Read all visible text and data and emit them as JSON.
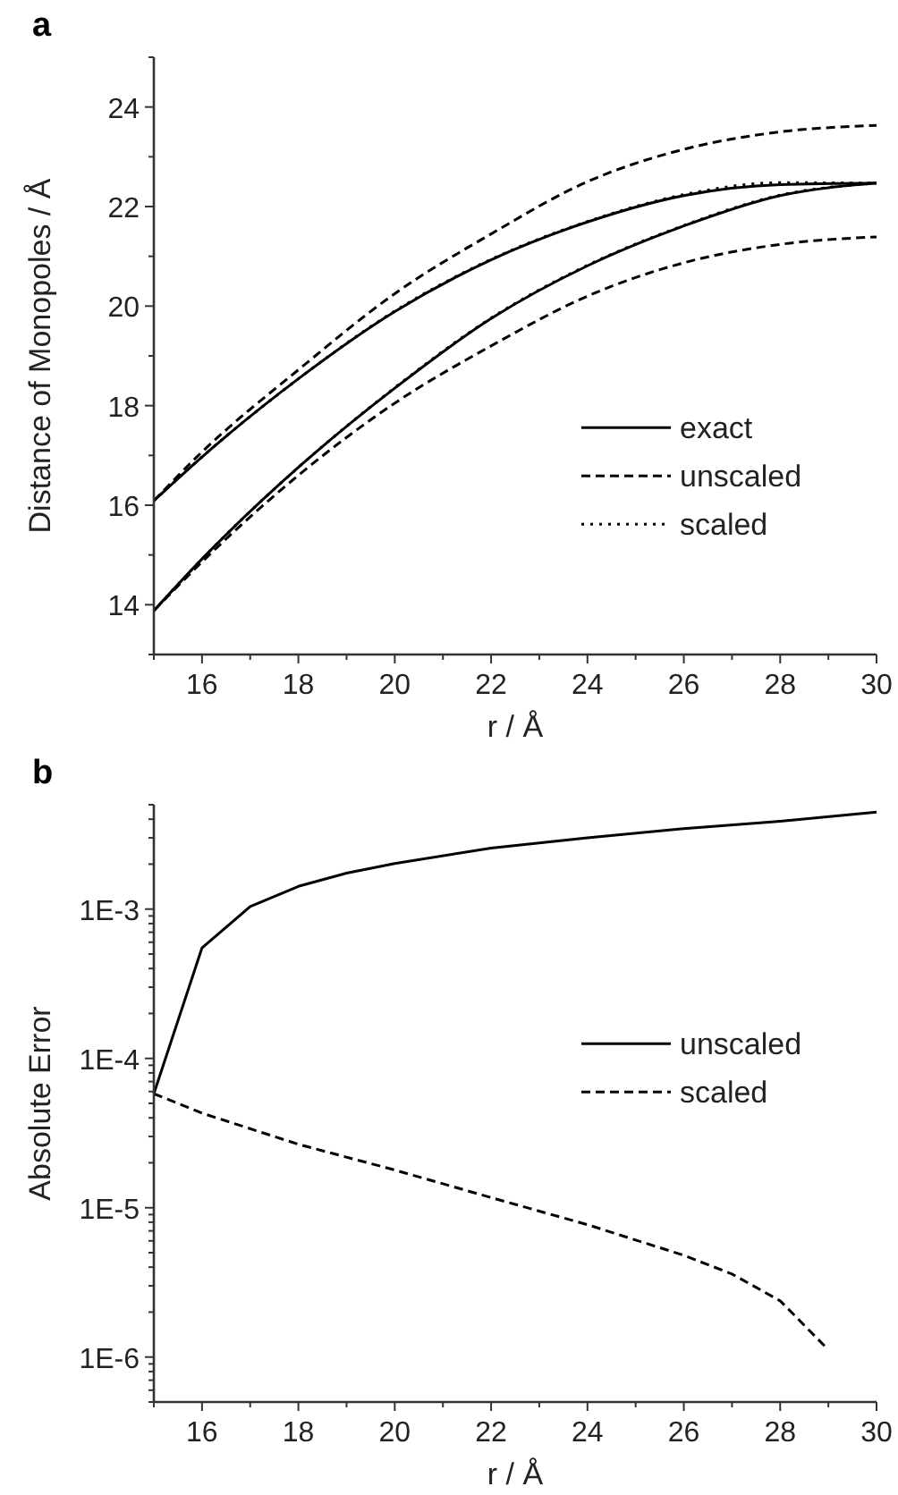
{
  "chart_data": [
    {
      "type": "line",
      "title": "a",
      "xlabel": "r / Å",
      "ylabel": "Distance of Monopoles /  Å",
      "x": [
        15,
        16,
        18,
        20,
        22,
        24,
        26,
        28,
        30
      ],
      "xlim": [
        15,
        30
      ],
      "xticks": [
        {
          "value": 15,
          "label": null
        },
        16,
        {
          "value": 17,
          "label": null
        },
        18,
        {
          "value": 19,
          "label": null
        },
        20,
        {
          "value": 21,
          "label": null
        },
        22,
        {
          "value": 23,
          "label": null
        },
        24,
        {
          "value": 25,
          "label": null
        },
        26,
        {
          "value": 27,
          "label": null
        },
        28,
        {
          "value": 29,
          "label": null
        },
        30
      ],
      "ylim": [
        13,
        25
      ],
      "yticks": [
        {
          "value": 13,
          "label": null
        },
        14,
        {
          "value": 15,
          "label": null
        },
        16,
        {
          "value": 17,
          "label": null
        },
        18,
        {
          "value": 19,
          "label": null
        },
        20,
        {
          "value": 21,
          "label": null
        },
        22,
        {
          "value": 23,
          "label": null
        },
        24,
        {
          "value": 25,
          "label": null
        }
      ],
      "grid": false,
      "legend": "right",
      "marker": "none",
      "series": [
        {
          "name": "exact",
          "color": "#000000",
          "line_style": "solid",
          "values": [
            16.09,
            16.97,
            18.54,
            19.89,
            20.93,
            21.69,
            22.22,
            22.44,
            22.47
          ]
        },
        {
          "color": "#000000",
          "line_style": "solid",
          "values": [
            13.88,
            14.92,
            16.76,
            18.35,
            19.75,
            20.81,
            21.61,
            22.22,
            22.47
          ]
        },
        {
          "name": "unscaled",
          "color": "#000000",
          "line_style": "dashed",
          "values": [
            16.09,
            17.07,
            18.72,
            20.25,
            21.45,
            22.5,
            23.15,
            23.5,
            23.63
          ]
        },
        {
          "color": "#000000",
          "line_style": "dashed",
          "values": [
            13.88,
            14.86,
            16.6,
            18.05,
            19.2,
            20.2,
            20.87,
            21.24,
            21.39
          ]
        },
        {
          "name": "scaled",
          "color": "#000000",
          "line_style": "dotted",
          "values": [
            16.09,
            16.97,
            18.54,
            19.9,
            20.94,
            21.7,
            22.24,
            22.48,
            22.47
          ]
        },
        {
          "color": "#000000",
          "line_style": "dotted",
          "values": [
            13.88,
            14.92,
            16.76,
            18.36,
            19.76,
            20.82,
            21.62,
            22.23,
            22.47
          ]
        }
      ]
    },
    {
      "type": "line",
      "title": "b",
      "xlabel": "r / Å",
      "ylabel": "Absolute Error",
      "log": "y",
      "xlim": [
        15,
        30
      ],
      "xticks": [
        {
          "value": 15,
          "label": null
        },
        16,
        {
          "value": 17,
          "label": null
        },
        18,
        {
          "value": 19,
          "label": null
        },
        20,
        {
          "value": 21,
          "label": null
        },
        22,
        {
          "value": 23,
          "label": null
        },
        24,
        {
          "value": 25,
          "label": null
        },
        26,
        {
          "value": 27,
          "label": null
        },
        28,
        {
          "value": 29,
          "label": null
        },
        30
      ],
      "ylim": [
        5e-07,
        0.005
      ],
      "yticks": [
        {
          "value": 5e-07,
          "label": null
        },
        {
          "value": 6e-07,
          "label": null
        },
        {
          "value": 7e-07,
          "label": null
        },
        {
          "value": 8e-07,
          "label": null
        },
        {
          "value": 9e-07,
          "label": null
        },
        {
          "value": 1e-06,
          "label": "1E-6"
        },
        {
          "value": 2e-06,
          "label": null
        },
        {
          "value": 3e-06,
          "label": null
        },
        {
          "value": 4e-06,
          "label": null
        },
        {
          "value": 5e-06,
          "label": null
        },
        {
          "value": 6e-06,
          "label": null
        },
        {
          "value": 7e-06,
          "label": null
        },
        {
          "value": 8e-06,
          "label": null
        },
        {
          "value": 9e-06,
          "label": null
        },
        {
          "value": 1e-05,
          "label": "1E-5"
        },
        {
          "value": 2e-05,
          "label": null
        },
        {
          "value": 3e-05,
          "label": null
        },
        {
          "value": 4e-05,
          "label": null
        },
        {
          "value": 5e-05,
          "label": null
        },
        {
          "value": 6e-05,
          "label": null
        },
        {
          "value": 7e-05,
          "label": null
        },
        {
          "value": 8e-05,
          "label": null
        },
        {
          "value": 9e-05,
          "label": null
        },
        {
          "value": 0.0001,
          "label": "1E-4"
        },
        {
          "value": 0.0002,
          "label": null
        },
        {
          "value": 0.0003,
          "label": null
        },
        {
          "value": 0.0004,
          "label": null
        },
        {
          "value": 0.0005,
          "label": null
        },
        {
          "value": 0.0006,
          "label": null
        },
        {
          "value": 0.0007,
          "label": null
        },
        {
          "value": 0.0008,
          "label": null
        },
        {
          "value": 0.0009,
          "label": null
        },
        {
          "value": 0.001,
          "label": "1E-3"
        },
        {
          "value": 0.002,
          "label": null
        },
        {
          "value": 0.003,
          "label": null
        },
        {
          "value": 0.004,
          "label": null
        },
        {
          "value": 0.005,
          "label": null
        }
      ],
      "grid": false,
      "legend": "center right",
      "marker": "none",
      "series": [
        {
          "name": "unscaled",
          "color": "#000000",
          "line_style": "solid",
          "x": [
            15,
            16,
            17,
            18,
            19,
            20,
            22,
            24,
            26,
            28,
            30
          ],
          "values": [
            5.8e-05,
            0.00055,
            0.00104,
            0.00142,
            0.00174,
            0.00202,
            0.00256,
            0.003,
            0.00346,
            0.00387,
            0.00446
          ]
        },
        {
          "name": "scaled",
          "color": "#000000",
          "line_style": "dashed",
          "x": [
            15,
            16,
            18,
            20,
            22,
            24,
            26,
            27,
            28,
            29
          ],
          "values": [
            5.8e-05,
            4.3e-05,
            2.66e-05,
            1.79e-05,
            1.17e-05,
            7.7e-06,
            4.8e-06,
            3.6e-06,
            2.38e-06,
            1.12e-06
          ]
        }
      ]
    }
  ]
}
